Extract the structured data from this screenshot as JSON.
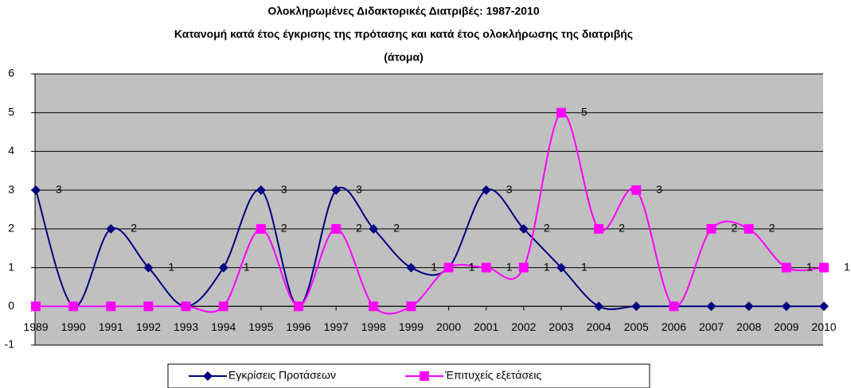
{
  "chart_data": {
    "type": "line",
    "title": [
      "Ολοκληρωμένες Διδακτορικές Διατριβές: 1987-2010",
      "Κατανομή κατά έτος έγκρισης της πρότασης και κατά έτος ολοκλήρωσης της διατριβής",
      "(άτομα)"
    ],
    "categories": [
      "1989",
      "1990",
      "1991",
      "1992",
      "1993",
      "1994",
      "1995",
      "1996",
      "1997",
      "1998",
      "1999",
      "2000",
      "2001",
      "2002",
      "2003",
      "2004",
      "2005",
      "2006",
      "2007",
      "2008",
      "2009",
      "2010"
    ],
    "series": [
      {
        "name": "Εγκρίσεις Προτάσεων",
        "color": "#000080",
        "marker": "diamond",
        "values": [
          3,
          0,
          2,
          1,
          0,
          1,
          3,
          0,
          3,
          2,
          1,
          1,
          3,
          2,
          1,
          0,
          0,
          0,
          0,
          0,
          0,
          0
        ]
      },
      {
        "name": "Έπιτυχείς εξετάσεις",
        "color": "#ff00ff",
        "marker": "square",
        "values": [
          0,
          0,
          0,
          0,
          0,
          0,
          2,
          0,
          2,
          0,
          0,
          1,
          1,
          1,
          5,
          2,
          3,
          0,
          2,
          2,
          1,
          1
        ]
      }
    ],
    "ylim": [
      -1,
      6
    ],
    "yticks": [
      -1,
      0,
      1,
      2,
      3,
      4,
      5,
      6
    ],
    "grid": true,
    "smooth": true,
    "legend": "bottom"
  }
}
